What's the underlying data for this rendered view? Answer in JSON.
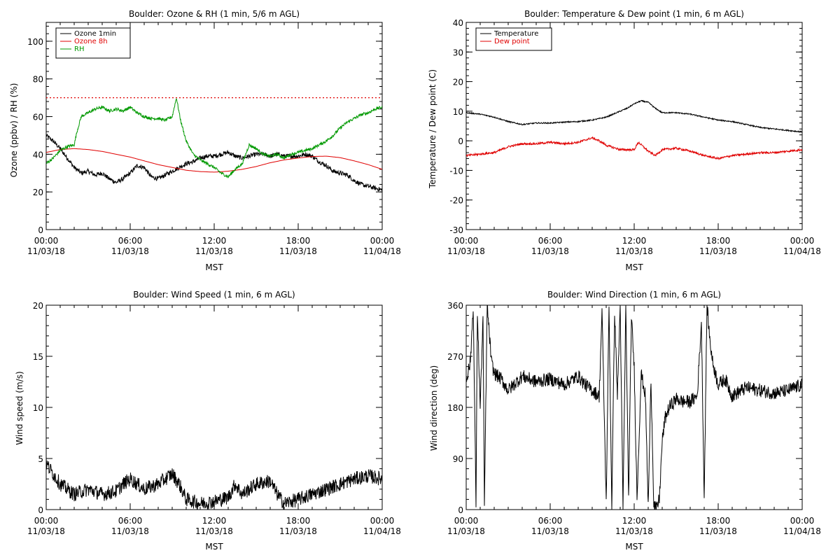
{
  "page": {
    "background": "#ffffff"
  },
  "chart_data": [
    {
      "type": "line",
      "title": "Boulder: Ozone & RH (1 min, 5/6 m AGL)",
      "xlabel": "MST",
      "ylabel": "Ozone (ppbv) / RH (%)",
      "xlim": [
        "11/03/18 00:00",
        "11/04/18 00:00"
      ],
      "ylim": [
        0,
        110
      ],
      "x_ticks": [
        {
          "time": "00:00",
          "date": "11/03/18"
        },
        {
          "time": "06:00",
          "date": "11/03/18"
        },
        {
          "time": "12:00",
          "date": "11/03/18"
        },
        {
          "time": "18:00",
          "date": "11/03/18"
        },
        {
          "time": "00:00",
          "date": "11/04/18"
        }
      ],
      "y_ticks": [
        "0",
        "20",
        "40",
        "60",
        "80",
        "100"
      ],
      "y_tick_values": [
        0,
        20,
        40,
        60,
        80,
        100
      ],
      "grid": false,
      "legend_position": "top-left",
      "reference_lines": [
        {
          "y": 70,
          "color": "#e00000",
          "style": "dotted"
        }
      ],
      "series": [
        {
          "name": "Ozone 1min",
          "color": "#000000",
          "noise": 1.2,
          "x_hours": [
            0,
            0.5,
            1,
            1.5,
            2,
            2.5,
            3,
            3.5,
            4,
            4.5,
            5,
            5.5,
            6,
            6.5,
            7,
            7.5,
            8,
            8.5,
            9,
            9.5,
            10,
            10.5,
            11,
            11.5,
            12,
            12.5,
            13,
            13.5,
            14,
            14.5,
            15,
            15.5,
            16,
            16.5,
            17,
            17.5,
            18,
            18.5,
            19,
            19.5,
            20,
            20.5,
            21,
            21.5,
            22,
            22.5,
            23,
            23.5,
            24
          ],
          "values": [
            50,
            47,
            43,
            38,
            33,
            30,
            31,
            29,
            30,
            27,
            25,
            27,
            30,
            34,
            33,
            28,
            27,
            29,
            31,
            33,
            35,
            36,
            38,
            39,
            39,
            40,
            41,
            39,
            38,
            39,
            40,
            40,
            39,
            40,
            39,
            39,
            39,
            40,
            39,
            36,
            34,
            31,
            30,
            29,
            26,
            24,
            23,
            22,
            21
          ]
        },
        {
          "name": "Ozone 8h",
          "color": "#e00000",
          "noise": 0,
          "x_hours": [
            0,
            1,
            2,
            3,
            4,
            5,
            6,
            7,
            8,
            9,
            10,
            11,
            12,
            13,
            14,
            15,
            16,
            17,
            18,
            19,
            20,
            21,
            22,
            23,
            24
          ],
          "values": [
            41,
            42.5,
            43,
            42.5,
            41.5,
            40,
            38.5,
            36.5,
            34.5,
            33,
            31.5,
            30.8,
            30.5,
            31,
            32,
            33.5,
            35.5,
            37,
            38,
            38.8,
            39,
            38.2,
            36.5,
            34.5,
            32
          ]
        },
        {
          "name": "RH",
          "color": "#009900",
          "noise": 0.8,
          "x_hours": [
            0,
            0.5,
            1,
            1.5,
            2,
            2.2,
            2.5,
            3,
            3.5,
            4,
            4.5,
            5,
            5.5,
            6,
            6.5,
            7,
            7.5,
            8,
            8.5,
            9,
            9.3,
            9.6,
            10,
            10.5,
            11,
            11.5,
            12,
            12.5,
            13,
            13.5,
            14,
            14.5,
            15,
            15.5,
            16,
            16.5,
            17,
            17.5,
            18,
            18.5,
            19,
            19.5,
            20,
            20.5,
            21,
            21.5,
            22,
            22.5,
            23,
            23.5,
            24
          ],
          "values": [
            35,
            38,
            42,
            44,
            45,
            52,
            60,
            62,
            64,
            65,
            63,
            64,
            63,
            65,
            62,
            60,
            59,
            59,
            58,
            60,
            70,
            58,
            47,
            40,
            37,
            35,
            33,
            30,
            28,
            32,
            35,
            45,
            43,
            40,
            39,
            40,
            38,
            40,
            41,
            42,
            43,
            45,
            47,
            50,
            54,
            57,
            59,
            61,
            62,
            64,
            65
          ]
        }
      ]
    },
    {
      "type": "line",
      "title": "Boulder: Temperature & Dew point (1 min, 6 m AGL)",
      "xlabel": "MST",
      "ylabel": "Temperature / Dew point (C)",
      "xlim": [
        "11/03/18 00:00",
        "11/04/18 00:00"
      ],
      "ylim": [
        -30,
        40
      ],
      "x_ticks": [
        {
          "time": "00:00",
          "date": "11/03/18"
        },
        {
          "time": "06:00",
          "date": "11/03/18"
        },
        {
          "time": "12:00",
          "date": "11/03/18"
        },
        {
          "time": "18:00",
          "date": "11/03/18"
        },
        {
          "time": "00:00",
          "date": "11/04/18"
        }
      ],
      "y_ticks": [
        "-30",
        "-20",
        "-10",
        "0",
        "10",
        "20",
        "30",
        "40"
      ],
      "y_tick_values": [
        -30,
        -20,
        -10,
        0,
        10,
        20,
        30,
        40
      ],
      "grid": false,
      "legend_position": "top-left",
      "reference_lines": [],
      "series": [
        {
          "name": "Temperature",
          "color": "#000000",
          "noise": 0.2,
          "x_hours": [
            0,
            1,
            2,
            3,
            4,
            5,
            6,
            7,
            8,
            9,
            10,
            11,
            11.5,
            12,
            12.5,
            13,
            13.5,
            14,
            15,
            16,
            17,
            18,
            19,
            20,
            21,
            22,
            23,
            24
          ],
          "values": [
            9.5,
            9,
            8,
            6.5,
            5.5,
            6,
            6,
            6.3,
            6.5,
            7,
            8,
            10,
            11,
            12.5,
            13.5,
            13,
            11,
            9.5,
            9.5,
            9,
            8,
            7,
            6.5,
            5.5,
            4.5,
            4,
            3.5,
            3
          ]
        },
        {
          "name": "Dew point",
          "color": "#e00000",
          "noise": 0.35,
          "x_hours": [
            0,
            1,
            2,
            3,
            4,
            5,
            6,
            7,
            8,
            9,
            9.5,
            10,
            11,
            12,
            12.3,
            13,
            13.5,
            14,
            15,
            16,
            17,
            18,
            19,
            20,
            21,
            22,
            23,
            24
          ],
          "values": [
            -5,
            -4.5,
            -4,
            -2,
            -1,
            -1,
            -0.5,
            -1,
            -0.5,
            1,
            0,
            -1.5,
            -3,
            -3,
            -0.5,
            -3.5,
            -5,
            -3,
            -2.5,
            -3.5,
            -5,
            -6,
            -5,
            -4.5,
            -4,
            -4,
            -3.5,
            -3
          ]
        }
      ]
    },
    {
      "type": "line",
      "title": "Boulder: Wind Speed (1 min, 6 m AGL)",
      "xlabel": "MST",
      "ylabel": "Wind speed (m/s)",
      "xlim": [
        "11/03/18 00:00",
        "11/04/18 00:00"
      ],
      "ylim": [
        0,
        20
      ],
      "x_ticks": [
        {
          "time": "00:00",
          "date": "11/03/18"
        },
        {
          "time": "06:00",
          "date": "11/03/18"
        },
        {
          "time": "12:00",
          "date": "11/03/18"
        },
        {
          "time": "18:00",
          "date": "11/03/18"
        },
        {
          "time": "00:00",
          "date": "11/04/18"
        }
      ],
      "y_ticks": [
        "0",
        "5",
        "10",
        "15",
        "20"
      ],
      "y_tick_values": [
        0,
        5,
        10,
        15,
        20
      ],
      "grid": false,
      "legend_position": "none",
      "reference_lines": [],
      "series": [
        {
          "name": "",
          "color": "#000000",
          "noise": 0.7,
          "x_hours": [
            0,
            0.5,
            1,
            1.5,
            2,
            3,
            4,
            5,
            5.5,
            6,
            7,
            8,
            9,
            9.5,
            10,
            11,
            12,
            13,
            13.5,
            14,
            15,
            16,
            16.5,
            17,
            18,
            19,
            20,
            21,
            22,
            23,
            24
          ],
          "values": [
            4.5,
            3.5,
            2.5,
            2,
            1.5,
            2,
            1.5,
            1.8,
            2.5,
            3,
            2,
            2.5,
            3.5,
            2.5,
            1,
            0.6,
            0.8,
            1.2,
            2.5,
            1.5,
            2.5,
            2.8,
            1.5,
            0.6,
            1,
            1.5,
            2,
            2.5,
            3,
            3.3,
            3
          ]
        }
      ]
    },
    {
      "type": "line",
      "title": "Boulder: Wind Direction (1 min, 6 m AGL)",
      "xlabel": "MST",
      "ylabel": "Wind direction (deg)",
      "xlim": [
        "11/03/18 00:00",
        "11/04/18 00:00"
      ],
      "ylim": [
        0,
        360
      ],
      "x_ticks": [
        {
          "time": "00:00",
          "date": "11/03/18"
        },
        {
          "time": "06:00",
          "date": "11/03/18"
        },
        {
          "time": "12:00",
          "date": "11/03/18"
        },
        {
          "time": "18:00",
          "date": "11/03/18"
        },
        {
          "time": "00:00",
          "date": "11/04/18"
        }
      ],
      "y_ticks": [
        "0",
        "90",
        "180",
        "270",
        "360"
      ],
      "y_tick_values": [
        0,
        90,
        180,
        270,
        360
      ],
      "grid": false,
      "legend_position": "none",
      "reference_lines": [],
      "series": [
        {
          "name": "",
          "color": "#000000",
          "noise": 12,
          "x_hours": [
            0,
            0.3,
            0.5,
            0.7,
            0.8,
            1.0,
            1.2,
            1.3,
            1.5,
            1.8,
            2,
            2.5,
            3,
            4,
            5,
            6,
            7,
            8,
            8.5,
            9,
            9.5,
            9.7,
            10,
            10.2,
            10.4,
            10.6,
            10.8,
            11,
            11.2,
            11.4,
            11.6,
            11.8,
            12,
            12.2,
            12.5,
            12.8,
            13,
            13.2,
            13.4,
            13.6,
            13.8,
            14,
            14.2,
            14.5,
            15,
            15.5,
            16,
            16.5,
            16.8,
            17,
            17.2,
            17.4,
            17.6,
            17.8,
            18,
            18.5,
            19,
            20,
            21,
            22,
            23,
            24
          ],
          "values": [
            230,
            260,
            360,
            10,
            350,
            180,
            340,
            5,
            360,
            260,
            240,
            230,
            210,
            235,
            225,
            230,
            220,
            235,
            220,
            210,
            200,
            350,
            10,
            360,
            5,
            350,
            200,
            360,
            0,
            360,
            20,
            340,
            250,
            20,
            240,
            200,
            5,
            230,
            10,
            0,
            20,
            120,
            160,
            180,
            195,
            190,
            190,
            200,
            330,
            20,
            360,
            300,
            260,
            240,
            220,
            230,
            200,
            215,
            210,
            205,
            210,
            220
          ]
        }
      ]
    }
  ]
}
